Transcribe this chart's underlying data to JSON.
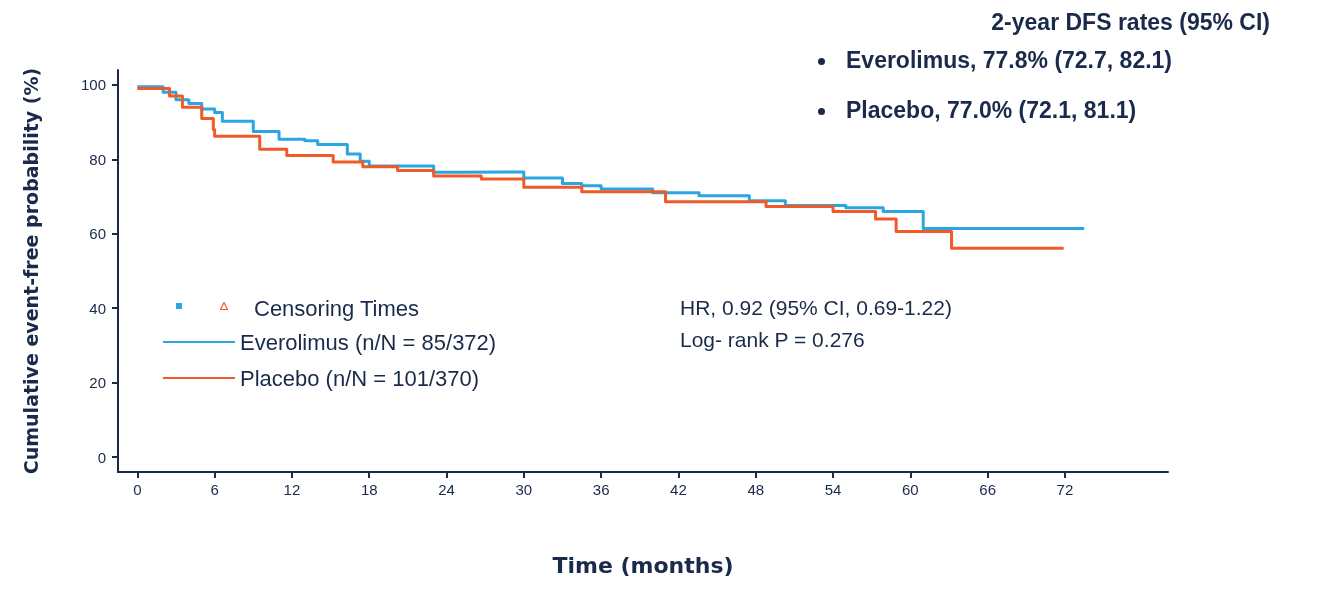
{
  "chart_data": {
    "type": "step",
    "title": "2-year DFS rates (95% CI)",
    "xlabel": "Time (months)",
    "ylabel": "Cumulative event-free probability (%)",
    "annotations": [
      "Everolimus, 77.8% (72.7, 82.1)",
      "Placebo, 77.0% (72.1, 81.1)",
      "HR, 0.92 (95% CI, 0.69-1.22)",
      "Log- rank P = 0.276",
      "Censoring Times"
    ],
    "xlim": [
      -1.5,
      80
    ],
    "xticks": [
      0,
      6,
      12,
      18,
      24,
      30,
      36,
      42,
      48,
      54,
      60,
      66,
      72
    ],
    "ylim": [
      -4,
      104
    ],
    "yticks": [
      0,
      20,
      40,
      60,
      80,
      100
    ],
    "grid": false,
    "legend": "left",
    "marker": "none",
    "line_style": "solid",
    "series": [
      {
        "name": "Everolimus (n/N = 85/372)",
        "color": "#2ca6e0",
        "x": [
          0,
          2,
          3,
          4,
          5,
          6,
          6.6,
          9,
          11,
          13,
          14,
          16.3,
          17.3,
          18,
          23,
          25,
          30,
          33,
          34.5,
          36,
          40,
          43.6,
          47.5,
          50.3,
          55,
          57.9,
          61,
          73.5
        ],
        "values": [
          99.5,
          98,
          96,
          95,
          93.5,
          92.6,
          90.2,
          87.5,
          85.4,
          85,
          84,
          81.4,
          79.5,
          78.2,
          76.5,
          76.6,
          75,
          73.5,
          72.9,
          72,
          71,
          70.2,
          68.9,
          67.6,
          67,
          66,
          61.4,
          61.4
        ]
      },
      {
        "name": "Placebo (n/N = 101/370)",
        "color": "#f05a28",
        "x": [
          0,
          2.5,
          3.5,
          5,
          5.9,
          6,
          9.5,
          11.6,
          15.2,
          17.5,
          20.2,
          23,
          26.7,
          30,
          34.5,
          41,
          48.8,
          54,
          57.3,
          58.9,
          63.2,
          71.9
        ],
        "values": [
          99,
          97,
          94,
          91,
          88,
          86.2,
          82.7,
          81,
          79.3,
          78,
          77,
          75.5,
          74.7,
          72.5,
          71.3,
          68.6,
          67.3,
          66,
          64,
          60.6,
          56.1,
          56.1
        ]
      }
    ]
  }
}
